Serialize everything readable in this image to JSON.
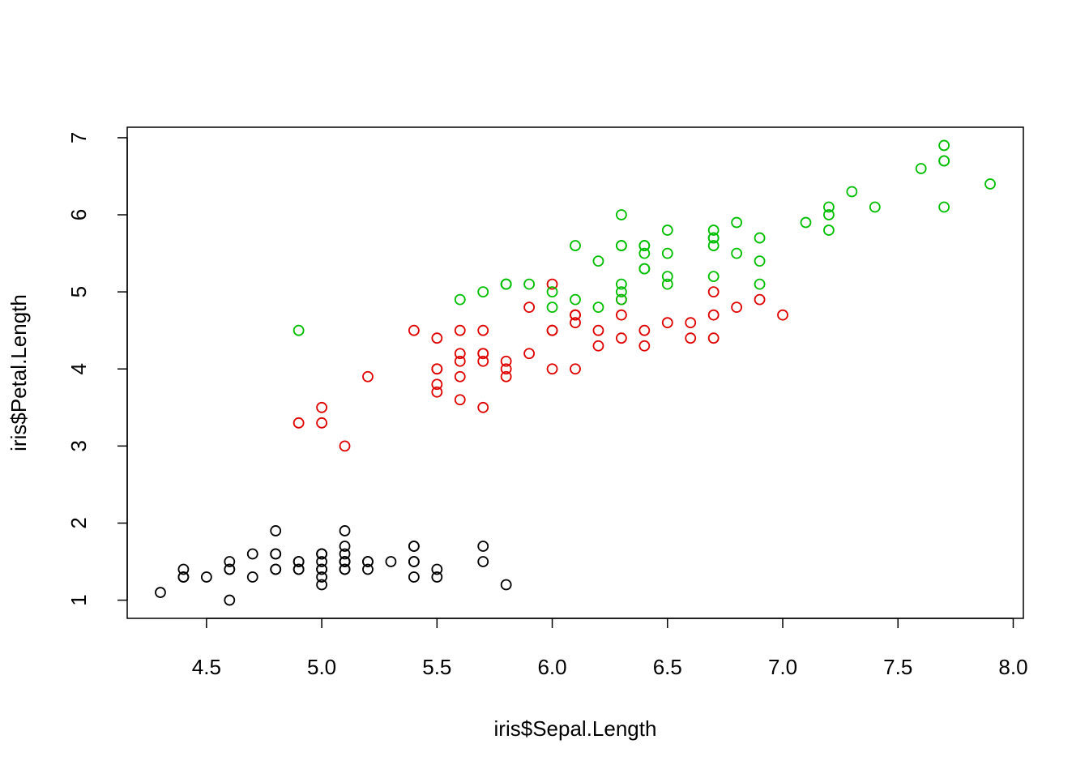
{
  "chart_data": {
    "type": "scatter",
    "x_label": "iris$Sepal.Length",
    "y_label": "iris$Petal.Length",
    "xlim": [
      4.156,
      8.044
    ],
    "ylim": [
      0.764,
      7.136
    ],
    "xticks": [
      4.5,
      {
        "value": 5,
        "label": "5.0"
      },
      5.5,
      {
        "value": 6,
        "label": "6.0"
      },
      6.5,
      {
        "value": 7,
        "label": "7.0"
      },
      7.5,
      {
        "value": 8,
        "label": "8.0"
      }
    ],
    "yticks": [
      1,
      2,
      3,
      4,
      5,
      6,
      7
    ],
    "series": [
      {
        "color": "#000000",
        "x": [
          5.1,
          4.9,
          4.7,
          4.6,
          5.0,
          5.4,
          4.6,
          5.0,
          4.4,
          4.9,
          5.4,
          4.8,
          4.8,
          4.3,
          5.8,
          5.7,
          5.4,
          5.1,
          5.7,
          5.1,
          5.4,
          5.1,
          4.6,
          5.1,
          4.8,
          5.0,
          5.0,
          5.2,
          5.2,
          4.7,
          4.8,
          5.4,
          5.2,
          5.5,
          4.9,
          5.0,
          5.5,
          4.9,
          4.4,
          5.1,
          5.0,
          4.5,
          4.4,
          5.0,
          5.1,
          4.8,
          5.1,
          4.6,
          5.3,
          5.0
        ],
        "values": [
          1.4,
          1.4,
          1.3,
          1.5,
          1.4,
          1.7,
          1.4,
          1.5,
          1.4,
          1.5,
          1.5,
          1.6,
          1.4,
          1.1,
          1.2,
          1.5,
          1.3,
          1.4,
          1.7,
          1.5,
          1.7,
          1.5,
          1.0,
          1.7,
          1.9,
          1.6,
          1.6,
          1.5,
          1.4,
          1.6,
          1.6,
          1.5,
          1.5,
          1.4,
          1.5,
          1.2,
          1.3,
          1.4,
          1.3,
          1.5,
          1.3,
          1.3,
          1.3,
          1.6,
          1.9,
          1.4,
          1.6,
          1.4,
          1.5,
          1.4
        ]
      },
      {
        "color": "#df0000",
        "x": [
          7.0,
          6.4,
          6.9,
          5.5,
          6.5,
          5.7,
          6.3,
          4.9,
          6.6,
          5.2,
          5.0,
          5.9,
          6.0,
          6.1,
          5.6,
          6.7,
          5.6,
          5.8,
          6.2,
          5.6,
          5.9,
          6.1,
          6.3,
          6.1,
          6.4,
          6.6,
          6.8,
          6.7,
          6.0,
          5.7,
          5.5,
          5.5,
          5.8,
          6.0,
          5.4,
          6.0,
          6.7,
          6.3,
          5.6,
          5.5,
          5.5,
          6.1,
          5.8,
          5.0,
          5.6,
          5.7,
          5.7,
          6.2,
          5.1,
          5.7
        ],
        "values": [
          4.7,
          4.5,
          4.9,
          4.0,
          4.6,
          4.5,
          4.7,
          3.3,
          4.6,
          3.9,
          3.5,
          4.2,
          4.0,
          4.7,
          3.6,
          4.4,
          4.5,
          4.1,
          4.5,
          3.9,
          4.8,
          4.0,
          4.9,
          4.7,
          4.3,
          4.4,
          4.8,
          5.0,
          4.5,
          3.5,
          3.8,
          3.7,
          3.9,
          5.1,
          4.5,
          4.5,
          4.7,
          4.4,
          4.1,
          4.0,
          4.4,
          4.6,
          4.0,
          3.3,
          4.2,
          4.2,
          4.2,
          4.3,
          3.0,
          4.1
        ]
      },
      {
        "color": "#00bf00",
        "x": [
          6.3,
          5.8,
          7.1,
          6.3,
          6.5,
          7.6,
          4.9,
          7.3,
          6.7,
          7.2,
          6.5,
          6.4,
          6.8,
          5.7,
          5.8,
          6.4,
          6.5,
          7.7,
          7.7,
          6.0,
          6.9,
          5.6,
          7.7,
          6.3,
          6.7,
          7.2,
          6.2,
          6.1,
          6.4,
          7.2,
          7.4,
          7.9,
          6.4,
          6.3,
          6.1,
          7.7,
          6.3,
          6.4,
          6.0,
          6.9,
          6.7,
          6.9,
          5.8,
          6.8,
          6.7,
          6.7,
          6.3,
          6.5,
          6.2,
          5.9
        ],
        "values": [
          6.0,
          5.1,
          5.9,
          5.6,
          5.8,
          6.6,
          4.5,
          6.3,
          5.8,
          6.1,
          5.1,
          5.3,
          5.5,
          5.0,
          5.1,
          5.3,
          5.5,
          6.7,
          6.9,
          5.0,
          5.7,
          4.9,
          6.7,
          4.9,
          5.7,
          6.0,
          4.8,
          4.9,
          5.6,
          5.8,
          6.1,
          6.4,
          5.6,
          5.1,
          5.6,
          6.1,
          5.6,
          5.5,
          4.8,
          5.4,
          5.6,
          5.1,
          5.1,
          5.9,
          5.7,
          5.2,
          5.0,
          5.2,
          5.4,
          5.1
        ]
      }
    ]
  }
}
